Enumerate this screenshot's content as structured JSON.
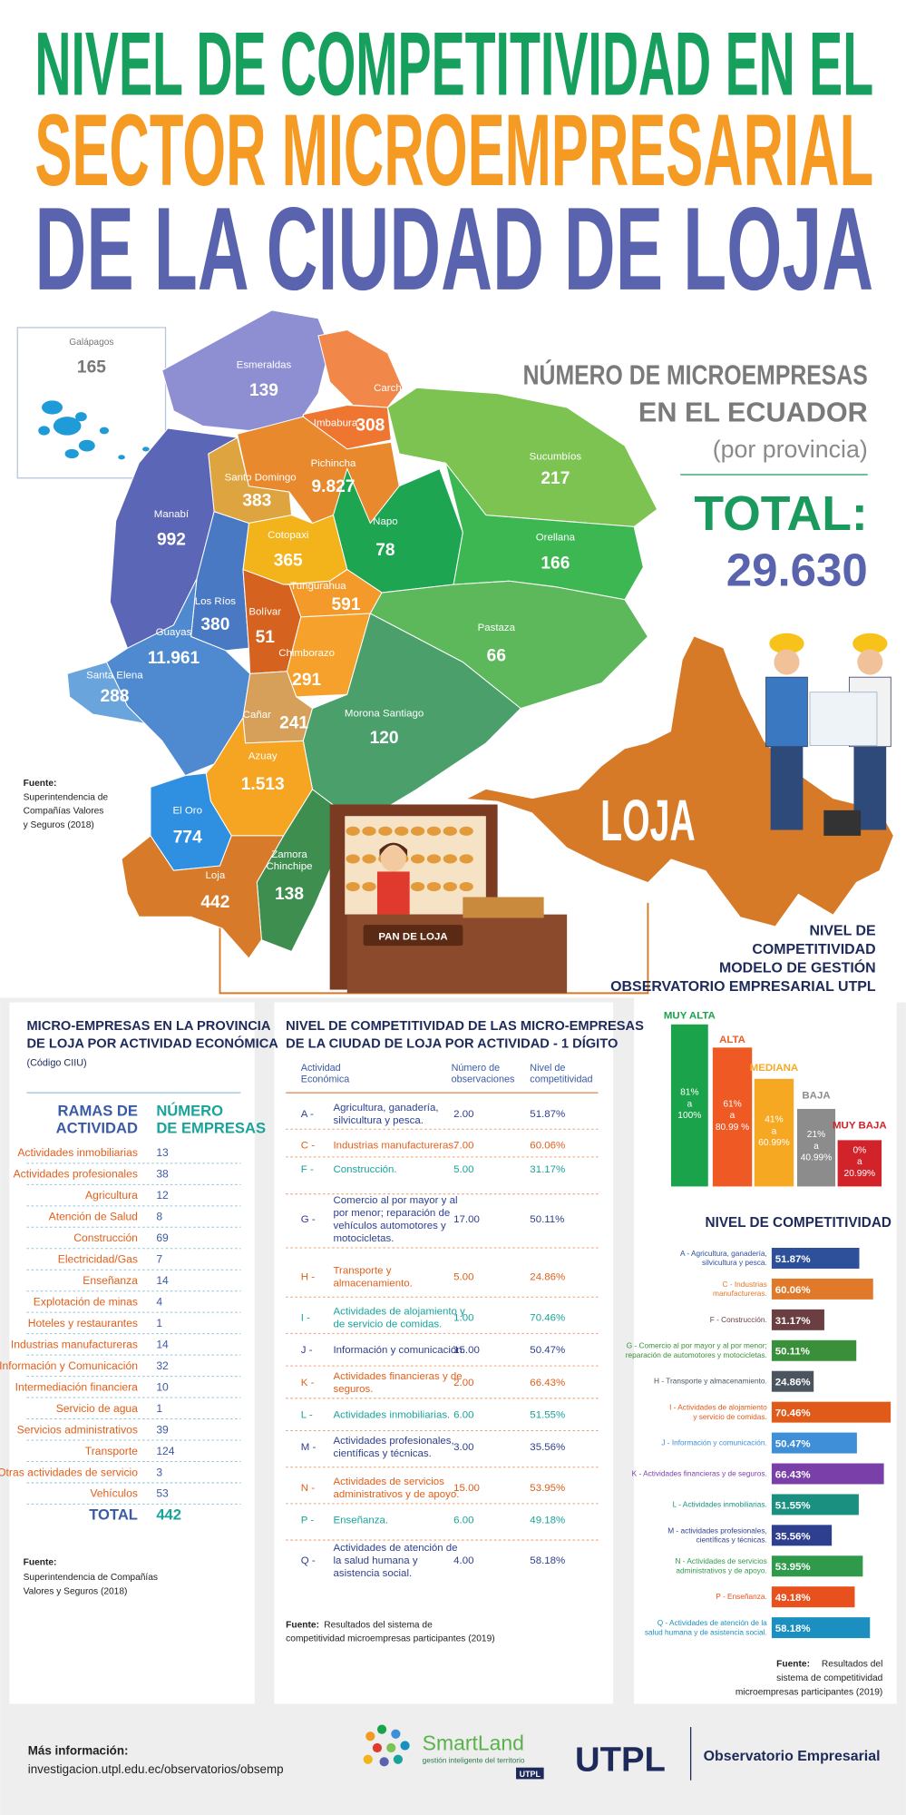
{
  "title": {
    "lines": [
      "NIVEL DE COMPETITIVIDAD EN EL",
      "SECTOR MICROEMPRESARIAL",
      "DE LA CIUDAD DE LOJA"
    ]
  },
  "map": {
    "galapagos": {
      "name": "Galápagos",
      "value": "165"
    },
    "provinces": [
      {
        "name": "Esmeraldas",
        "value": "139"
      },
      {
        "name": "Carchi"
      },
      {
        "name": "Imbabura",
        "value": "308"
      },
      {
        "name": "Sucumbíos",
        "value": "217"
      },
      {
        "name": "Pichincha",
        "value": "9.827"
      },
      {
        "name": "Santo Domingo",
        "value": "383"
      },
      {
        "name": "Manabí",
        "value": "992"
      },
      {
        "name": "Napo",
        "value": "78"
      },
      {
        "name": "Orellana",
        "value": "166"
      },
      {
        "name": "Cotopaxi",
        "value": "365"
      },
      {
        "name": "Tungurahua",
        "value": "591"
      },
      {
        "name": "Los Ríos",
        "value": "380"
      },
      {
        "name": "Bolívar",
        "value": "51"
      },
      {
        "name": "Guayas",
        "value": "11.961"
      },
      {
        "name": "Santa Elena",
        "value": "288"
      },
      {
        "name": "Chimborazo",
        "value": "291"
      },
      {
        "name": "Pastaza",
        "value": "66"
      },
      {
        "name": "Cañar",
        "value": "241"
      },
      {
        "name": "Morona Santiago",
        "value": "120"
      },
      {
        "name": "Azuay",
        "value": "1.513"
      },
      {
        "name": "El Oro",
        "value": "774"
      },
      {
        "name": "Zamora Chinchipe",
        "value": "138"
      },
      {
        "name": "Loja",
        "value": "442"
      }
    ],
    "heading": [
      "NÚMERO DE MICROEMPRESAS",
      "EN EL ECUADOR"
    ],
    "subheading": "(por provincia)",
    "total_label": "TOTAL:",
    "total_value": "29.630",
    "source": {
      "label": "Fuente:",
      "lines": [
        "Superintendencia de",
        "Compañías Valores",
        "y Seguros (2018)"
      ]
    },
    "loja_label": "LOJA",
    "shop_sign": "PAN DE LOJA"
  },
  "model": {
    "title_lines": [
      "NIVEL DE",
      "COMPETITIVIDAD",
      "MODELO DE GESTIÓN",
      "OBSERVATORIO EMPRESARIAL UTPL"
    ],
    "levels": [
      {
        "name": "MUY ALTA",
        "range": [
          "81%",
          "a",
          "100%"
        ]
      },
      {
        "name": "ALTA",
        "range": [
          "61%",
          "a",
          "80.99 %"
        ]
      },
      {
        "name": "MEDIANA",
        "range": [
          "41%",
          "a",
          "60.99%"
        ]
      },
      {
        "name": "BAJA",
        "range": [
          "21%",
          "a",
          "40.99%"
        ]
      },
      {
        "name": "MUY BAJA",
        "range": [
          "0%",
          "a",
          "20.99%"
        ]
      }
    ]
  },
  "activity_table": {
    "title_lines": [
      "MICRO-EMPRESAS EN LA PROVINCIA",
      "DE LOJA POR ACTIVIDAD ECONÓMICA"
    ],
    "subtitle": "(Código CIIU)",
    "headers": {
      "activity": [
        "RAMAS DE",
        "ACTIVIDAD"
      ],
      "count": [
        "NÚMERO",
        "DE EMPRESAS"
      ]
    },
    "rows": [
      {
        "name": "Actividades inmobiliarias",
        "value": "13"
      },
      {
        "name": "Actividades profesionales",
        "value": "38"
      },
      {
        "name": "Agricultura",
        "value": "12"
      },
      {
        "name": "Atención de Salud",
        "value": "8"
      },
      {
        "name": "Construcción",
        "value": "69"
      },
      {
        "name": "Electricidad/Gas",
        "value": "7"
      },
      {
        "name": "Enseñanza",
        "value": "14"
      },
      {
        "name": "Explotación de minas",
        "value": "4"
      },
      {
        "name": "Hoteles y restaurantes",
        "value": "1"
      },
      {
        "name": "Industrias manufactureras",
        "value": "14"
      },
      {
        "name": "Información y Comunicación",
        "value": "32"
      },
      {
        "name": "Intermediación financiera",
        "value": "10"
      },
      {
        "name": "Servicio de agua",
        "value": "1"
      },
      {
        "name": "Servicios administrativos",
        "value": "39"
      },
      {
        "name": "Transporte",
        "value": "124"
      },
      {
        "name": "Otras actividades de servicio",
        "value": "3"
      },
      {
        "name": "Vehículos",
        "value": "53"
      }
    ],
    "total": {
      "label": "TOTAL",
      "value": "442"
    },
    "source": {
      "label": "Fuente:",
      "lines": [
        "Superintendencia de Compañías",
        "Valores y Seguros (2018)"
      ]
    }
  },
  "competitiveness_table": {
    "title_lines": [
      "NIVEL DE COMPETITIVIDAD DE LAS MICRO-EMPRESAS",
      "DE LA CIUDAD DE LOJA POR ACTIVIDAD - 1 DÍGITO"
    ],
    "headers": {
      "activity": [
        "Actividad",
        "Económica"
      ],
      "observations": [
        "Número de",
        "observaciones"
      ],
      "level": [
        "Nivel de",
        "competitividad"
      ]
    },
    "rows": [
      {
        "code": "A -",
        "activity": [
          "Agricultura, ganadería,",
          "silvicultura y pesca."
        ],
        "observations": "2.00",
        "level": "51.87%"
      },
      {
        "code": "C -",
        "activity": [
          "Industrias manufactureras."
        ],
        "observations": "7.00",
        "level": "60.06%"
      },
      {
        "code": "F -",
        "activity": [
          "Construcción."
        ],
        "observations": "5.00",
        "level": "31.17%"
      },
      {
        "code": "G -",
        "activity": [
          "Comercio al por mayor y al",
          "por menor; reparación de",
          "vehículos automotores y",
          "motocicletas."
        ],
        "observations": "17.00",
        "level": "50.11%"
      },
      {
        "code": "H -",
        "activity": [
          "Transporte y",
          "almacenamiento."
        ],
        "observations": "5.00",
        "level": "24.86%"
      },
      {
        "code": "I -",
        "activity": [
          "Actividades de alojamiento y",
          "de servicio de comidas."
        ],
        "observations": "1.00",
        "level": "70.46%"
      },
      {
        "code": "J -",
        "activity": [
          "Información y comunicación."
        ],
        "observations": "15.00",
        "level": "50.47%"
      },
      {
        "code": "K -",
        "activity": [
          "Actividades financieras y de",
          "seguros."
        ],
        "observations": "2.00",
        "level": "66.43%"
      },
      {
        "code": "L -",
        "activity": [
          "Actividades inmobiliarias."
        ],
        "observations": "6.00",
        "level": "51.55%"
      },
      {
        "code": "M -",
        "activity": [
          "Actividades profesionales,",
          "científicas y técnicas."
        ],
        "observations": "3.00",
        "level": "35.56%"
      },
      {
        "code": "N -",
        "activity": [
          "Actividades de servicios",
          "administrativos y de apoyo."
        ],
        "observations": "15.00",
        "level": "53.95%"
      },
      {
        "code": "P -",
        "activity": [
          "Enseñanza."
        ],
        "observations": "6.00",
        "level": "49.18%"
      },
      {
        "code": "Q -",
        "activity": [
          "Actividades de atención de",
          "la salud humana y",
          "asistencia social."
        ],
        "observations": "4.00",
        "level": "58.18%"
      }
    ],
    "source": {
      "label": "Fuente:",
      "lines": [
        "Resultados del sistema de",
        "competitividad microempresas participantes (2019)"
      ]
    }
  },
  "chart_data": {
    "type": "bar",
    "orientation": "horizontal",
    "title": "NIVEL DE COMPETITIVIDAD",
    "categories": [
      [
        "A - Agricultura, ganadería,",
        "silvicultura y pesca."
      ],
      [
        "C - Industrias",
        "manufactureras."
      ],
      [
        "F - Construcción."
      ],
      [
        "G - Comercio al por mayor y al por menor;",
        "reparación de automotores y motocicletas."
      ],
      [
        "H - Transporte y almacenamiento."
      ],
      [
        "I - Actividades de alojamiento",
        "y servicio de comidas."
      ],
      [
        "J - Información y comunicación."
      ],
      [
        "K - Actividades financieras y de seguros."
      ],
      [
        "L - Actividades inmobiliarias."
      ],
      [
        "M - actividades profesionales,",
        "científicas y técnicas."
      ],
      [
        "N - Actividades de servicios",
        "administrativos y de apoyo."
      ],
      [
        "P - Enseñanza."
      ],
      [
        "Q - Actividades de atención de la",
        "salud humana y de asistencia social."
      ]
    ],
    "values": [
      51.87,
      60.06,
      31.17,
      50.11,
      24.86,
      70.46,
      50.47,
      66.43,
      51.55,
      35.56,
      53.95,
      49.18,
      58.18
    ],
    "value_labels": [
      "51.87%",
      "60.06%",
      "31.17%",
      "50.11%",
      "24.86%",
      "70.46%",
      "50.47%",
      "66.43%",
      "51.55%",
      "35.56%",
      "53.95%",
      "49.18%",
      "58.18%"
    ],
    "colors": [
      "#2e4f9a",
      "#e07a2a",
      "#6b3f42",
      "#3a8f3a",
      "#4a5560",
      "#e05a1a",
      "#3f8fd8",
      "#7a3fa8",
      "#1a9080",
      "#2e3f8f",
      "#2e9a4a",
      "#e8501e",
      "#1a8fc0"
    ],
    "source": {
      "label": "Fuente:",
      "lines": [
        "Resultados del",
        "sistema de competitividad",
        "microempresas participantes (2019)"
      ]
    }
  },
  "footer": {
    "info_label": "Más información:",
    "url": "investigacion.utpl.edu.ec/observatorios/obsemp",
    "smartland": "SmartLand",
    "smartland_tagline": "gestión inteligente del territorio",
    "smartland_badge": "UTPL",
    "utpl": "UTPL",
    "observatory": "Observatorio Empresarial"
  }
}
